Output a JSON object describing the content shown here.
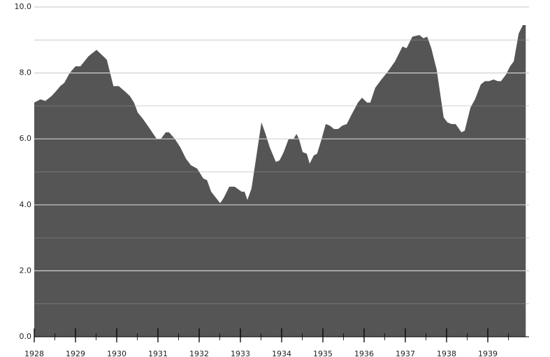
{
  "chart_data": {
    "type": "area",
    "color": "#555555",
    "x": [
      1928.0,
      1928.15,
      1928.27,
      1928.42,
      1928.53,
      1928.63,
      1928.73,
      1928.86,
      1929.0,
      1929.12,
      1929.31,
      1929.51,
      1929.68,
      1929.76,
      1929.92,
      1930.05,
      1930.19,
      1930.32,
      1930.42,
      1930.51,
      1930.64,
      1930.78,
      1930.97,
      1931.07,
      1931.19,
      1931.27,
      1931.41,
      1931.54,
      1931.68,
      1931.8,
      1931.95,
      1932.1,
      1932.19,
      1932.29,
      1932.51,
      1932.59,
      1932.73,
      1932.86,
      1933.03,
      1933.1,
      1933.17,
      1933.27,
      1933.51,
      1933.61,
      1933.71,
      1933.86,
      1933.95,
      1934.05,
      1934.17,
      1934.29,
      1934.36,
      1934.42,
      1934.51,
      1934.61,
      1934.68,
      1934.78,
      1934.86,
      1934.97,
      1935.07,
      1935.17,
      1935.27,
      1935.37,
      1935.47,
      1935.58,
      1935.68,
      1935.85,
      1935.95,
      1936.07,
      1936.15,
      1936.27,
      1936.42,
      1936.58,
      1936.75,
      1936.93,
      1937.03,
      1937.17,
      1937.34,
      1937.44,
      1937.53,
      1937.63,
      1937.76,
      1937.86,
      1937.93,
      1938.02,
      1938.12,
      1938.22,
      1938.36,
      1938.44,
      1938.58,
      1938.69,
      1938.83,
      1938.93,
      1939.03,
      1939.14,
      1939.24,
      1939.32,
      1939.44,
      1939.54,
      1939.63,
      1939.75,
      1939.85,
      1939.92
    ],
    "values": [
      7.1,
      7.2,
      7.15,
      7.3,
      7.45,
      7.6,
      7.7,
      8.0,
      8.2,
      8.2,
      8.5,
      8.7,
      8.5,
      8.4,
      7.6,
      7.6,
      7.45,
      7.3,
      7.1,
      6.8,
      6.6,
      6.35,
      6.0,
      6.0,
      6.2,
      6.2,
      6.0,
      5.75,
      5.4,
      5.2,
      5.1,
      4.8,
      4.75,
      4.4,
      4.05,
      4.2,
      4.55,
      4.55,
      4.4,
      4.4,
      4.15,
      4.5,
      6.5,
      6.15,
      5.75,
      5.3,
      5.35,
      5.6,
      6.0,
      6.0,
      6.15,
      6.0,
      5.6,
      5.55,
      5.25,
      5.5,
      5.55,
      6.0,
      6.45,
      6.4,
      6.3,
      6.3,
      6.4,
      6.45,
      6.7,
      7.1,
      7.25,
      7.1,
      7.1,
      7.55,
      7.8,
      8.05,
      8.35,
      8.8,
      8.75,
      9.1,
      9.15,
      9.05,
      9.1,
      8.75,
      8.1,
      7.25,
      6.65,
      6.5,
      6.45,
      6.45,
      6.2,
      6.25,
      6.95,
      7.2,
      7.65,
      7.75,
      7.75,
      7.8,
      7.75,
      7.75,
      7.95,
      8.2,
      8.35,
      9.2,
      9.45,
      9.45
    ],
    "xlim": [
      1928,
      1940
    ],
    "xticks": [
      1928,
      1929,
      1930,
      1931,
      1932,
      1933,
      1934,
      1935,
      1936,
      1937,
      1938,
      1939
    ],
    "xminorticks": [
      1928.5,
      1929.5,
      1930.5,
      1931.5,
      1932.5,
      1933.5,
      1934.5,
      1935.5,
      1936.5,
      1937.5,
      1938.5,
      1939.5
    ],
    "ylim": [
      0,
      10
    ],
    "yticks": [
      {
        "value": 0,
        "label": "0.0"
      },
      {
        "value": 2,
        "label": "2.0"
      },
      {
        "value": 4,
        "label": "4.0"
      },
      {
        "value": 6,
        "label": "6.0"
      },
      {
        "value": 8,
        "label": "8.0"
      },
      {
        "value": 10,
        "label": "10.0"
      }
    ],
    "yminorticks": [
      1,
      3,
      5,
      7,
      9
    ],
    "grid": true
  }
}
